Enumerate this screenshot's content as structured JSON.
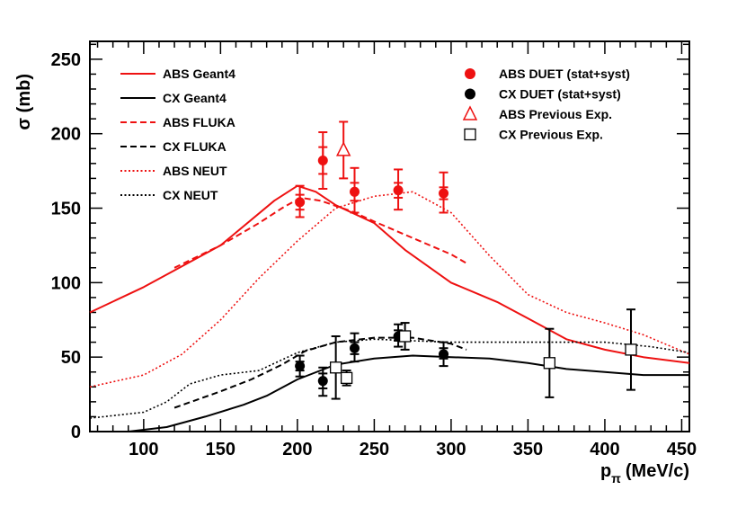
{
  "chart_data": {
    "type": "line",
    "title": "",
    "xlabel": "p",
    "xlabel_sub": "π",
    "xlabel_unit": "(MeV/c)",
    "ylabel": "σ (mb)",
    "xlim": [
      65,
      455
    ],
    "ylim": [
      0,
      262
    ],
    "x_ticks": [
      100,
      150,
      200,
      250,
      300,
      350,
      400,
      450
    ],
    "y_ticks": [
      0,
      50,
      100,
      150,
      200,
      250
    ],
    "colors": {
      "red": "#ee1111",
      "black": "#000000"
    },
    "series": [
      {
        "name": "ABS Geant4",
        "color": "#ee1111",
        "dash": "solid",
        "points": [
          [
            65,
            80
          ],
          [
            100,
            97
          ],
          [
            150,
            125
          ],
          [
            185,
            155
          ],
          [
            200,
            165
          ],
          [
            212,
            161
          ],
          [
            225,
            152
          ],
          [
            250,
            140
          ],
          [
            270,
            122
          ],
          [
            300,
            100
          ],
          [
            330,
            87
          ],
          [
            350,
            76
          ],
          [
            375,
            62
          ],
          [
            400,
            55
          ],
          [
            425,
            50
          ],
          [
            455,
            46
          ]
        ]
      },
      {
        "name": "CX Geant4",
        "color": "#000000",
        "dash": "solid",
        "points": [
          [
            65,
            0
          ],
          [
            90,
            0
          ],
          [
            115,
            3
          ],
          [
            140,
            10
          ],
          [
            165,
            18
          ],
          [
            180,
            24
          ],
          [
            200,
            35
          ],
          [
            225,
            45
          ],
          [
            250,
            49
          ],
          [
            275,
            51
          ],
          [
            300,
            50
          ],
          [
            325,
            49
          ],
          [
            350,
            46
          ],
          [
            375,
            42
          ],
          [
            400,
            40
          ],
          [
            425,
            38
          ],
          [
            455,
            38
          ]
        ]
      },
      {
        "name": "ABS FLUKA",
        "color": "#ee1111",
        "dash": "dashed",
        "points": [
          [
            120,
            110
          ],
          [
            150,
            125
          ],
          [
            175,
            140
          ],
          [
            190,
            150
          ],
          [
            202,
            157
          ],
          [
            215,
            155
          ],
          [
            235,
            148
          ],
          [
            250,
            141
          ],
          [
            275,
            130
          ],
          [
            300,
            119
          ],
          [
            310,
            113
          ]
        ]
      },
      {
        "name": "CX FLUKA",
        "color": "#000000",
        "dash": "dashed",
        "points": [
          [
            120,
            16
          ],
          [
            150,
            27
          ],
          [
            170,
            35
          ],
          [
            190,
            45
          ],
          [
            205,
            54
          ],
          [
            225,
            60
          ],
          [
            250,
            63
          ],
          [
            275,
            63
          ],
          [
            300,
            59
          ],
          [
            310,
            55
          ]
        ]
      },
      {
        "name": "ABS NEUT",
        "color": "#ee1111",
        "dash": "dotted",
        "points": [
          [
            65,
            30
          ],
          [
            100,
            38
          ],
          [
            125,
            52
          ],
          [
            150,
            75
          ],
          [
            175,
            103
          ],
          [
            200,
            128
          ],
          [
            225,
            150
          ],
          [
            250,
            158
          ],
          [
            275,
            161
          ],
          [
            300,
            147
          ],
          [
            325,
            118
          ],
          [
            350,
            92
          ],
          [
            375,
            80
          ],
          [
            400,
            73
          ],
          [
            425,
            65
          ],
          [
            455,
            52
          ]
        ]
      },
      {
        "name": "CX NEUT",
        "color": "#000000",
        "dash": "dotted",
        "points": [
          [
            65,
            9
          ],
          [
            100,
            13
          ],
          [
            115,
            20
          ],
          [
            130,
            32
          ],
          [
            150,
            38
          ],
          [
            175,
            41
          ],
          [
            200,
            53
          ],
          [
            225,
            60
          ],
          [
            250,
            62
          ],
          [
            275,
            61
          ],
          [
            300,
            60
          ],
          [
            350,
            60
          ],
          [
            400,
            60
          ],
          [
            430,
            57
          ],
          [
            455,
            53
          ]
        ]
      }
    ],
    "points_series": [
      {
        "name": "ABS DUET (stat+syst)",
        "color": "#ee1111",
        "marker": "filled-circle",
        "points": [
          {
            "x": 201.6,
            "y": 154,
            "lo": 149,
            "hi": 159,
            "lo2": 144,
            "hi2": 165
          },
          {
            "x": 216.6,
            "y": 182,
            "lo": 173,
            "hi": 191,
            "lo2": 163,
            "hi2": 201
          },
          {
            "x": 237.2,
            "y": 161,
            "lo": 155,
            "hi": 167,
            "lo2": 147,
            "hi2": 177
          },
          {
            "x": 265.6,
            "y": 162,
            "lo": 157,
            "hi": 167,
            "lo2": 149,
            "hi2": 176
          },
          {
            "x": 295.1,
            "y": 160,
            "lo": 156,
            "hi": 164,
            "lo2": 147,
            "hi2": 174
          }
        ]
      },
      {
        "name": "CX DUET (stat+syst)",
        "color": "#000000",
        "marker": "filled-circle",
        "points": [
          {
            "x": 201.6,
            "y": 44,
            "lo": 41,
            "hi": 47,
            "lo2": 37,
            "hi2": 51
          },
          {
            "x": 216.6,
            "y": 34,
            "lo": 29,
            "hi": 39,
            "lo2": 24,
            "hi2": 43
          },
          {
            "x": 237.2,
            "y": 56,
            "lo": 52,
            "hi": 60,
            "lo2": 47,
            "hi2": 66
          },
          {
            "x": 265.6,
            "y": 64,
            "lo": 61,
            "hi": 68,
            "lo2": 57,
            "hi2": 72
          },
          {
            "x": 295.1,
            "y": 52,
            "lo": 49,
            "hi": 56,
            "lo2": 44,
            "hi2": 60
          }
        ]
      },
      {
        "name": "ABS Previous Exp.",
        "color": "#ee1111",
        "marker": "open-triangle",
        "points": [
          {
            "x": 230,
            "y": 189,
            "lo": 170,
            "hi": 208
          }
        ]
      },
      {
        "name": "CX Previous Exp.",
        "color": "#000000",
        "marker": "open-square",
        "points": [
          {
            "x": 225,
            "y": 43,
            "lo": 22,
            "hi": 64
          },
          {
            "x": 232,
            "y": 36,
            "lo": 31,
            "hi": 41
          },
          {
            "x": 270,
            "y": 64,
            "lo": 55,
            "hi": 73
          },
          {
            "x": 364,
            "y": 46,
            "lo": 23,
            "hi": 69
          },
          {
            "x": 417,
            "y": 55,
            "lo": 28,
            "hi": 82
          }
        ]
      }
    ],
    "legend_left": [
      "ABS Geant4",
      "CX Geant4",
      "ABS FLUKA",
      "CX FLUKA",
      "ABS NEUT",
      "CX NEUT"
    ],
    "legend_right": [
      "ABS DUET (stat+syst)",
      "CX DUET (stat+syst)",
      "ABS Previous Exp.",
      "CX Previous Exp."
    ]
  }
}
